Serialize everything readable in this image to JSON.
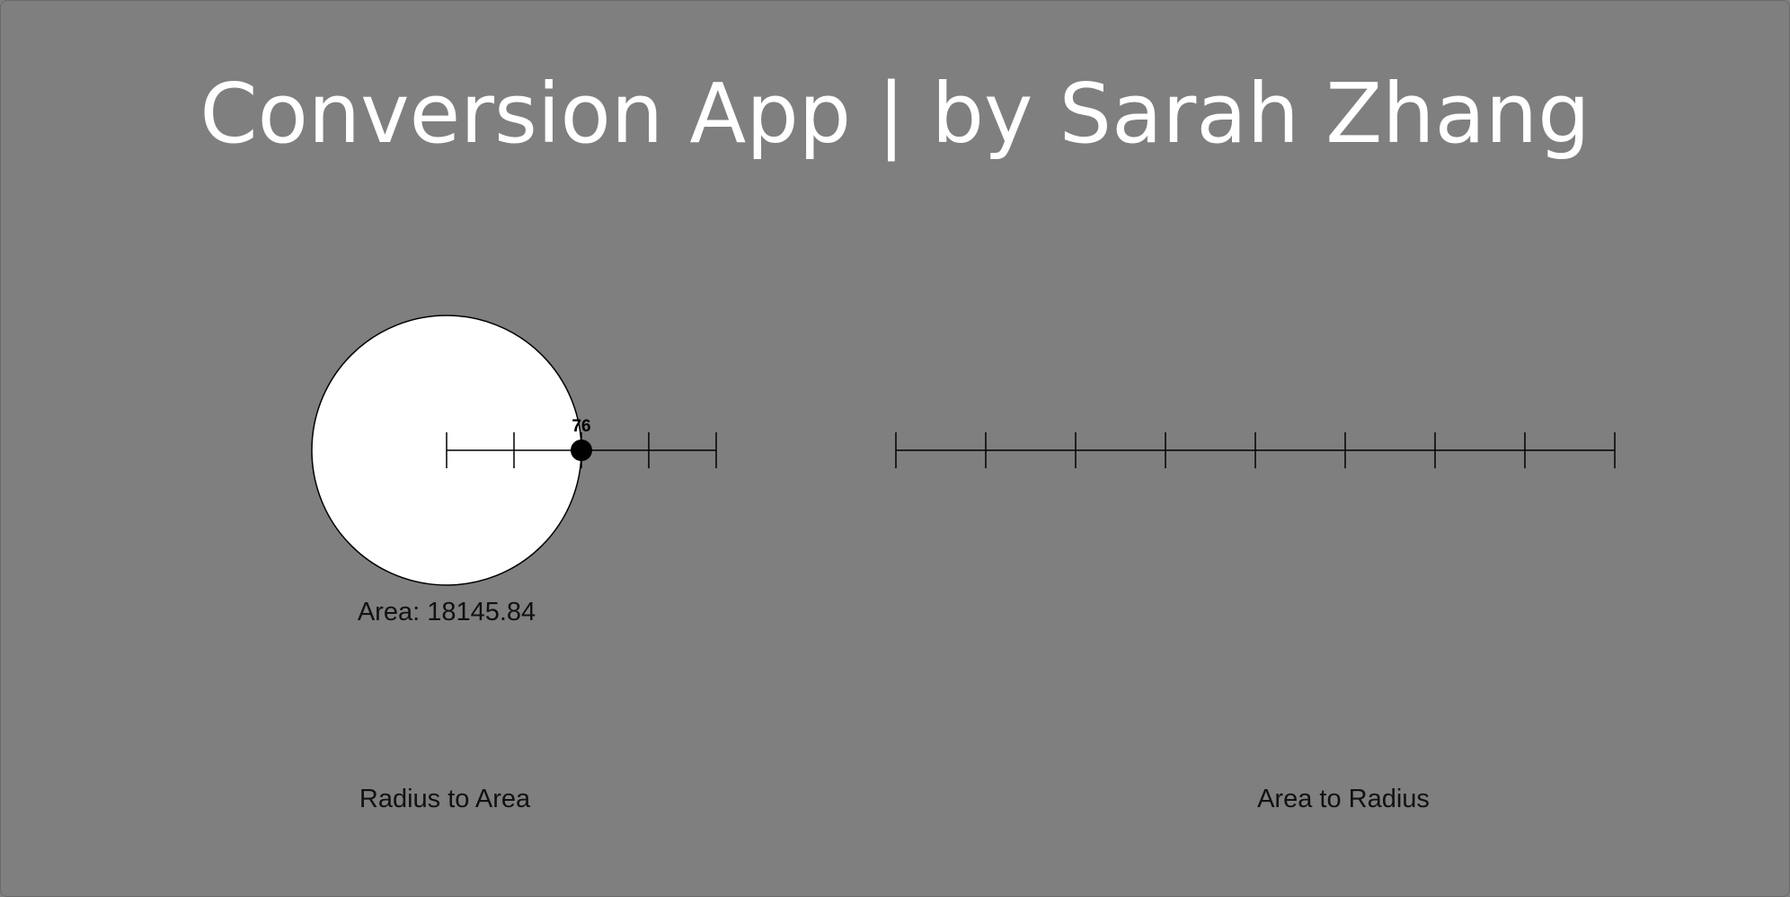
{
  "app": {
    "title": "Conversion App | by Sarah Zhang"
  },
  "radius_to_area": {
    "section_label": "Radius to Area",
    "radius_value": 76,
    "radius_label": "76",
    "area_text": "Area: 18145.84",
    "slider_max": 152,
    "tick_count": 4
  },
  "area_to_radius": {
    "section_label": "Area to Radius",
    "tick_count": 8
  },
  "colors": {
    "background": "#7f7f7f",
    "circle_fill": "#ffffff",
    "line": "#000000",
    "title_text": "#ffffff",
    "label_text": "#111111"
  }
}
